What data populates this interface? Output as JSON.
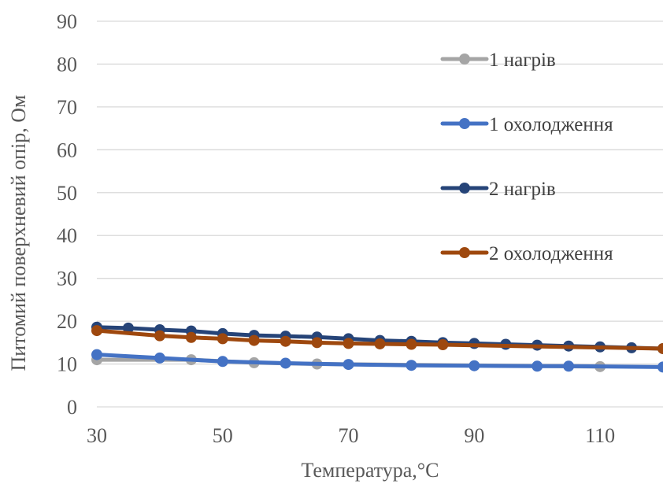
{
  "chart_data": {
    "type": "line",
    "title": "",
    "xlabel": "Температура,°C",
    "ylabel": "Питомий поверхневий опір, Ом",
    "xlim": [
      30,
      120
    ],
    "ylim": [
      0,
      90
    ],
    "x_ticks": [
      30,
      50,
      70,
      90,
      110
    ],
    "y_ticks": [
      0,
      10,
      20,
      30,
      40,
      50,
      60,
      70,
      80,
      90
    ],
    "grid": true,
    "legend_position": "right",
    "series": [
      {
        "name": "1 нагрів",
        "color": "#a5a5a5",
        "x": [
          30,
          45,
          55,
          65,
          110
        ],
        "y": [
          11.0,
          11.0,
          10.3,
          10.0,
          9.4
        ]
      },
      {
        "name": "1 охолодження",
        "color": "#4472c4",
        "x": [
          30,
          40,
          50,
          60,
          70,
          80,
          90,
          100,
          105,
          120
        ],
        "y": [
          12.2,
          11.4,
          10.6,
          10.2,
          9.9,
          9.7,
          9.6,
          9.5,
          9.5,
          9.3
        ]
      },
      {
        "name": "2 нагрів",
        "color": "#264478",
        "x": [
          30,
          35,
          40,
          45,
          50,
          55,
          60,
          65,
          70,
          75,
          80,
          85,
          90,
          95,
          100,
          105,
          110,
          115,
          120
        ],
        "y": [
          18.6,
          18.4,
          18.0,
          17.7,
          17.1,
          16.7,
          16.5,
          16.3,
          15.9,
          15.5,
          15.3,
          15.0,
          14.8,
          14.6,
          14.4,
          14.2,
          14.0,
          13.8,
          13.6
        ]
      },
      {
        "name": "2 охолодження",
        "color": "#9e480e",
        "x": [
          30,
          40,
          45,
          50,
          55,
          60,
          65,
          70,
          75,
          80,
          85,
          120
        ],
        "y": [
          17.8,
          16.6,
          16.2,
          15.9,
          15.5,
          15.3,
          15.0,
          14.8,
          14.7,
          14.6,
          14.5,
          13.6
        ]
      }
    ]
  }
}
